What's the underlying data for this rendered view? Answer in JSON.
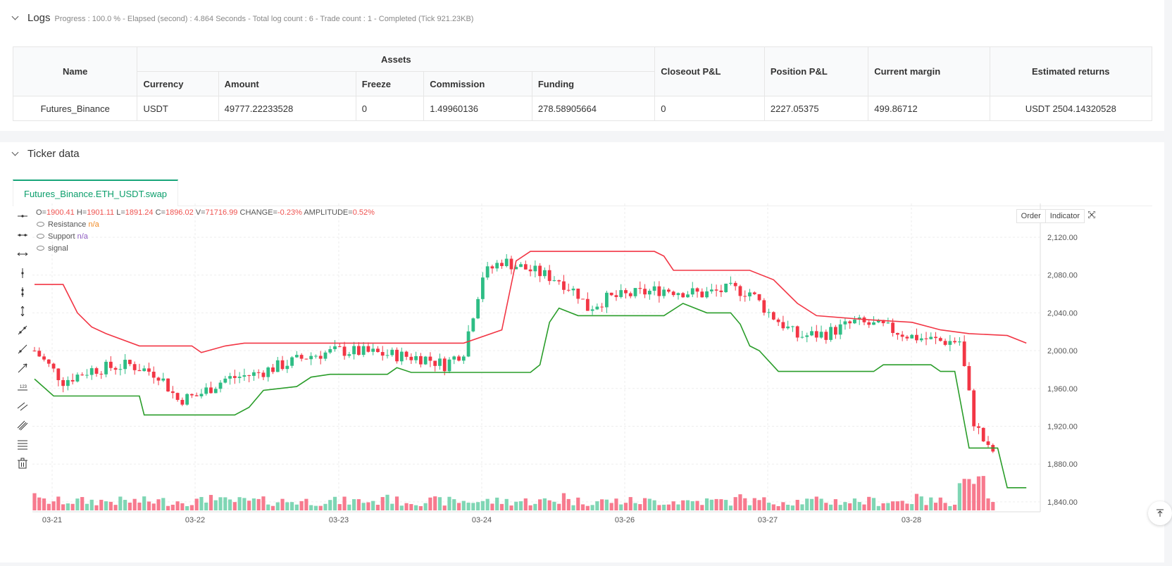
{
  "logs": {
    "title": "Logs",
    "summary": "Progress : 100.0 % - Elapsed (second) : 4.864  Seconds - Total log count : 6 - Trade count : 1 - Completed (Tick 921.23KB)"
  },
  "assets_table": {
    "headers": {
      "name": "Name",
      "assets": "Assets",
      "currency": "Currency",
      "amount": "Amount",
      "freeze": "Freeze",
      "commission": "Commission",
      "funding": "Funding",
      "closeout": "Closeout P&L",
      "position": "Position P&L",
      "margin": "Current margin",
      "returns": "Estimated returns"
    },
    "row": {
      "name": "Futures_Binance",
      "currency": "USDT",
      "amount": "49777.22233528",
      "freeze": "0",
      "commission": "1.49960136",
      "funding": "278.58905664",
      "closeout": "0",
      "position": "2227.05375",
      "margin": "499.86712",
      "returns": "USDT 2504.14320528"
    }
  },
  "ticker": {
    "title": "Ticker data",
    "tab": "Futures_Binance.ETH_USDT.swap",
    "buttons": {
      "order": "Order",
      "indicator": "Indicator"
    }
  },
  "legend": {
    "o_label": "O=",
    "o": "1900.41",
    "h_label": "H=",
    "h": "1901.11",
    "l_label": "L=",
    "l": "1891.24",
    "c_label": "C=",
    "c": "1896.02",
    "v_label": "V=",
    "v": "71716.99",
    "change_label": "CHANGE=",
    "change": "-0.23%",
    "amp_label": "AMPLITUDE=",
    "amp": "0.52%",
    "resistance": "Resistance",
    "resistance_val": "n/a",
    "support": "Support",
    "support_val": "n/a",
    "signal": "signal"
  },
  "colors": {
    "up": "#26a69a",
    "up_fill": "#2ebd85",
    "down": "#f23645",
    "resistance": "#f23645",
    "support": "#2a9d2a",
    "vol_up": "#7fd6b4",
    "vol_down": "#f77a8e"
  },
  "chart_data": {
    "type": "candlestick",
    "y_ticks": [
      "2,120.00",
      "2,080.00",
      "2,040.00",
      "2,000.00",
      "1,960.00",
      "1,920.00",
      "1,880.00",
      "1,840.00"
    ],
    "y_tick_values": [
      2120,
      2080,
      2040,
      2000,
      1960,
      1920,
      1880,
      1840
    ],
    "ylim": [
      1830,
      2140
    ],
    "x_ticks": [
      "03-21",
      "03-22",
      "03-23",
      "03-24",
      "03-26",
      "03-27",
      "03-28"
    ],
    "candle_count": 202,
    "price_path": [
      [
        0,
        2000
      ],
      [
        6,
        1968
      ],
      [
        12,
        1980
      ],
      [
        20,
        1985
      ],
      [
        26,
        1975
      ],
      [
        30,
        1948
      ],
      [
        34,
        1952
      ],
      [
        40,
        1970
      ],
      [
        46,
        1975
      ],
      [
        52,
        1985
      ],
      [
        58,
        1995
      ],
      [
        64,
        2000
      ],
      [
        70,
        1998
      ],
      [
        76,
        1995
      ],
      [
        82,
        1992
      ],
      [
        86,
        1985
      ],
      [
        90,
        2000
      ],
      [
        94,
        2080
      ],
      [
        98,
        2095
      ],
      [
        104,
        2085
      ],
      [
        110,
        2075
      ],
      [
        114,
        2060
      ],
      [
        116,
        2045
      ],
      [
        120,
        2055
      ],
      [
        126,
        2060
      ],
      [
        132,
        2065
      ],
      [
        140,
        2060
      ],
      [
        146,
        2065
      ],
      [
        150,
        2062
      ],
      [
        154,
        2040
      ],
      [
        160,
        2015
      ],
      [
        166,
        2018
      ],
      [
        172,
        2030
      ],
      [
        178,
        2025
      ],
      [
        184,
        2015
      ],
      [
        190,
        2010
      ],
      [
        194,
        2010
      ],
      [
        197,
        1925
      ],
      [
        200,
        1895
      ],
      [
        206,
        1888
      ],
      [
        212,
        1885
      ],
      [
        222,
        1900
      ]
    ],
    "resistance": [
      [
        0,
        2070
      ],
      [
        6,
        2070
      ],
      [
        9,
        2040
      ],
      [
        12,
        2025
      ],
      [
        15,
        2018
      ],
      [
        22,
        2005
      ],
      [
        33,
        2005
      ],
      [
        35,
        1998
      ],
      [
        40,
        2005
      ],
      [
        44,
        2008
      ],
      [
        86,
        2008
      ],
      [
        90,
        2008
      ],
      [
        98,
        2022
      ],
      [
        101,
        2095
      ],
      [
        104,
        2105
      ],
      [
        130,
        2105
      ],
      [
        132,
        2100
      ],
      [
        134,
        2085
      ],
      [
        150,
        2085
      ],
      [
        155,
        2075
      ],
      [
        160,
        2050
      ],
      [
        164,
        2037
      ],
      [
        174,
        2033
      ],
      [
        184,
        2030
      ],
      [
        190,
        2022
      ],
      [
        196,
        2018
      ],
      [
        204,
        2016
      ],
      [
        208,
        2008
      ]
    ],
    "support": [
      [
        0,
        1970
      ],
      [
        4,
        1952
      ],
      [
        22,
        1952
      ],
      [
        23,
        1932
      ],
      [
        42,
        1932
      ],
      [
        45,
        1940
      ],
      [
        48,
        1958
      ],
      [
        55,
        1962
      ],
      [
        58,
        1972
      ],
      [
        62,
        1975
      ],
      [
        74,
        1975
      ],
      [
        76,
        1982
      ],
      [
        79,
        1977
      ],
      [
        100,
        1977
      ],
      [
        104,
        1977
      ],
      [
        106,
        1985
      ],
      [
        108,
        2030
      ],
      [
        110,
        2045
      ],
      [
        114,
        2037
      ],
      [
        132,
        2037
      ],
      [
        136,
        2050
      ],
      [
        141,
        2040
      ],
      [
        146,
        2040
      ],
      [
        148,
        2028
      ],
      [
        150,
        2005
      ],
      [
        152,
        2000
      ],
      [
        156,
        1978
      ],
      [
        176,
        1978
      ],
      [
        178,
        1985
      ],
      [
        188,
        1985
      ],
      [
        190,
        1978
      ],
      [
        193,
        1978
      ],
      [
        196,
        1897
      ],
      [
        202,
        1897
      ],
      [
        204,
        1855
      ],
      [
        208,
        1855
      ]
    ]
  }
}
